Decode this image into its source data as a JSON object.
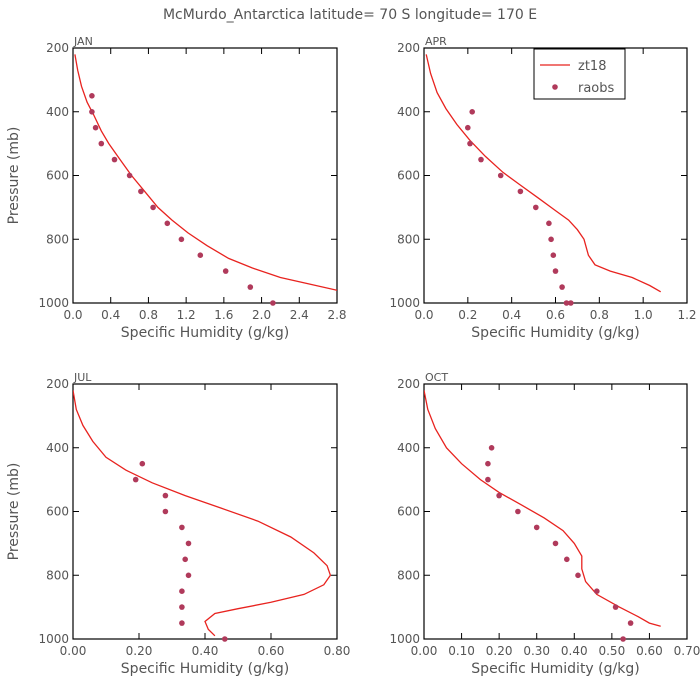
{
  "title": "McMurdo_Antarctica  latitude= 70 S longitude= 170 E",
  "colors": {
    "model": "#e8231f",
    "obs": "#b03a5b",
    "axis": "#000000",
    "text": "#555555"
  },
  "legend": {
    "placement": "top-right of APR panel",
    "line_label": "zt18",
    "dot_label": "raobs"
  },
  "chart_data": [
    {
      "type": "line",
      "panel": "JAN",
      "xlabel": "Specific Humidity (g/kg)",
      "ylabel": "Pressure (mb)",
      "xlim": [
        0,
        2.8
      ],
      "ylim": [
        1000,
        200
      ],
      "xticks": [
        0,
        0.4,
        0.8,
        1.2,
        1.6,
        2.0,
        2.4,
        2.8
      ],
      "xtick_labels": [
        "0.0",
        "0.4",
        "0.8",
        "1.2",
        "1.6",
        "2.0",
        "2.4",
        "2.8"
      ],
      "yticks": [
        200,
        400,
        600,
        800,
        1000
      ],
      "ytick_labels": [
        "200",
        "400",
        "600",
        "800",
        "1000"
      ],
      "series": [
        {
          "name": "zt18",
          "kind": "line",
          "x": [
            0.02,
            0.05,
            0.09,
            0.15,
            0.22,
            0.3,
            0.38,
            0.5,
            0.62,
            0.76,
            0.9,
            1.05,
            1.22,
            1.42,
            1.65,
            1.9,
            2.2,
            2.5,
            2.8
          ],
          "y": [
            220,
            270,
            320,
            370,
            410,
            460,
            500,
            550,
            600,
            650,
            700,
            740,
            780,
            820,
            860,
            890,
            920,
            940,
            960
          ]
        },
        {
          "name": "raobs",
          "kind": "points",
          "x": [
            0.2,
            0.2,
            0.24,
            0.3,
            0.44,
            0.6,
            0.72,
            0.85,
            1.0,
            1.15,
            1.35,
            1.62,
            1.88,
            2.12
          ],
          "y": [
            350,
            400,
            450,
            500,
            550,
            600,
            650,
            700,
            750,
            800,
            850,
            900,
            950,
            1000
          ]
        }
      ]
    },
    {
      "type": "line",
      "panel": "APR",
      "xlabel": "Specific Humidity (g/kg)",
      "ylabel": "",
      "xlim": [
        0,
        1.2
      ],
      "ylim": [
        1000,
        200
      ],
      "xticks": [
        0,
        0.2,
        0.4,
        0.6,
        0.8,
        1.0,
        1.2
      ],
      "xtick_labels": [
        "0.0",
        "0.2",
        "0.4",
        "0.6",
        "0.8",
        "1.0",
        "1.2"
      ],
      "yticks": [
        200,
        400,
        600,
        800,
        1000
      ],
      "ytick_labels": [
        "200",
        "400",
        "600",
        "800",
        "1000"
      ],
      "series": [
        {
          "name": "zt18",
          "kind": "line",
          "x": [
            0.01,
            0.03,
            0.06,
            0.1,
            0.15,
            0.21,
            0.28,
            0.36,
            0.44,
            0.52,
            0.6,
            0.66,
            0.7,
            0.73,
            0.75,
            0.78,
            0.85,
            0.95,
            1.03,
            1.08
          ],
          "y": [
            220,
            280,
            340,
            390,
            440,
            490,
            540,
            590,
            630,
            670,
            710,
            740,
            770,
            800,
            850,
            880,
            900,
            920,
            945,
            965
          ]
        },
        {
          "name": "raobs",
          "kind": "points",
          "x": [
            0.22,
            0.2,
            0.21,
            0.26,
            0.35,
            0.44,
            0.51,
            0.57,
            0.58,
            0.59,
            0.6,
            0.63,
            0.65,
            0.67
          ],
          "y": [
            400,
            450,
            500,
            550,
            600,
            650,
            700,
            750,
            800,
            850,
            900,
            950,
            1000,
            1000
          ]
        }
      ]
    },
    {
      "type": "line",
      "panel": "JUL",
      "xlabel": "Specific Humidity (g/kg)",
      "ylabel": "Pressure (mb)",
      "xlim": [
        0,
        0.8
      ],
      "ylim": [
        1000,
        200
      ],
      "xticks": [
        0,
        0.2,
        0.4,
        0.6,
        0.8
      ],
      "xtick_labels": [
        "0.00",
        "0.20",
        "0.40",
        "0.60",
        "0.80"
      ],
      "yticks": [
        200,
        400,
        600,
        800,
        1000
      ],
      "ytick_labels": [
        "200",
        "400",
        "600",
        "800",
        "1000"
      ],
      "series": [
        {
          "name": "zt18",
          "kind": "line",
          "x": [
            0.0,
            0.01,
            0.03,
            0.06,
            0.1,
            0.16,
            0.24,
            0.34,
            0.45,
            0.56,
            0.66,
            0.73,
            0.77,
            0.78,
            0.76,
            0.7,
            0.6,
            0.5,
            0.43,
            0.4,
            0.41,
            0.43
          ],
          "y": [
            220,
            280,
            330,
            380,
            430,
            470,
            510,
            550,
            590,
            630,
            680,
            730,
            770,
            800,
            830,
            860,
            885,
            905,
            920,
            945,
            970,
            990
          ]
        },
        {
          "name": "raobs",
          "kind": "points",
          "x": [
            0.21,
            0.19,
            0.28,
            0.28,
            0.33,
            0.35,
            0.34,
            0.35,
            0.33,
            0.33,
            0.33,
            0.46
          ],
          "y": [
            450,
            500,
            550,
            600,
            650,
            700,
            750,
            800,
            850,
            900,
            950,
            1000
          ]
        }
      ]
    },
    {
      "type": "line",
      "panel": "OCT",
      "xlabel": "Specific Humidity (g/kg)",
      "ylabel": "",
      "xlim": [
        0,
        0.7
      ],
      "ylim": [
        1000,
        200
      ],
      "xticks": [
        0,
        0.1,
        0.2,
        0.3,
        0.4,
        0.5,
        0.6,
        0.7
      ],
      "xtick_labels": [
        "0.00",
        "0.10",
        "0.20",
        "0.30",
        "0.40",
        "0.50",
        "0.60",
        "0.70"
      ],
      "yticks": [
        200,
        400,
        600,
        800,
        1000
      ],
      "ytick_labels": [
        "200",
        "400",
        "600",
        "800",
        "1000"
      ],
      "series": [
        {
          "name": "zt18",
          "kind": "line",
          "x": [
            0.0,
            0.01,
            0.03,
            0.06,
            0.1,
            0.15,
            0.2,
            0.26,
            0.32,
            0.37,
            0.4,
            0.42,
            0.42,
            0.43,
            0.46,
            0.52,
            0.57,
            0.6,
            0.63
          ],
          "y": [
            220,
            280,
            340,
            400,
            450,
            500,
            540,
            580,
            620,
            660,
            700,
            740,
            780,
            820,
            860,
            900,
            930,
            950,
            960
          ]
        },
        {
          "name": "raobs",
          "kind": "points",
          "x": [
            0.18,
            0.17,
            0.17,
            0.2,
            0.25,
            0.3,
            0.35,
            0.38,
            0.41,
            0.46,
            0.51,
            0.55,
            0.53
          ],
          "y": [
            400,
            450,
            500,
            550,
            600,
            650,
            700,
            750,
            800,
            850,
            900,
            950,
            1000
          ]
        }
      ]
    }
  ]
}
